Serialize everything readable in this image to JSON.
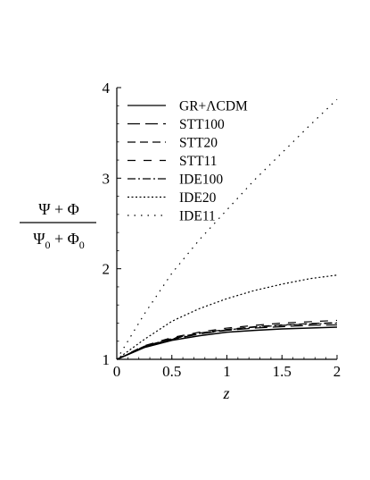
{
  "chart_data": {
    "type": "line",
    "ylabel_numerator": "Ψ + Φ",
    "ylabel_denominator": "Ψ0 + Φ0",
    "xlabel": "z",
    "xlim": [
      0,
      2
    ],
    "ylim": [
      1,
      4
    ],
    "x_ticks": [
      "0",
      "0.5",
      "1",
      "1.5",
      "2"
    ],
    "y_ticks": [
      "1",
      "2",
      "3",
      "4"
    ],
    "grid": false,
    "legend_position": "top-left",
    "series": [
      {
        "name": "GR+ΛCDM",
        "dash": "solid",
        "x": [
          0,
          0.25,
          0.5,
          0.75,
          1,
          1.25,
          1.5,
          1.75,
          2
        ],
        "y": [
          1.0,
          1.13,
          1.21,
          1.26,
          1.3,
          1.32,
          1.335,
          1.345,
          1.355
        ]
      },
      {
        "name": "STT100",
        "dash": "long-dash",
        "x": [
          0,
          0.25,
          0.5,
          0.75,
          1,
          1.25,
          1.5,
          1.75,
          2
        ],
        "y": [
          1.0,
          1.14,
          1.22,
          1.28,
          1.32,
          1.345,
          1.36,
          1.375,
          1.38
        ]
      },
      {
        "name": "STT20",
        "dash": "dash",
        "x": [
          0,
          0.25,
          0.5,
          0.75,
          1,
          1.25,
          1.5,
          1.75,
          2
        ],
        "y": [
          1.0,
          1.145,
          1.23,
          1.29,
          1.33,
          1.36,
          1.38,
          1.395,
          1.405
        ]
      },
      {
        "name": "STT11",
        "dash": "spaced-dash",
        "x": [
          0,
          0.25,
          0.5,
          0.75,
          1,
          1.25,
          1.5,
          1.75,
          2
        ],
        "y": [
          1.0,
          1.15,
          1.24,
          1.3,
          1.345,
          1.375,
          1.4,
          1.415,
          1.43
        ]
      },
      {
        "name": "IDE100",
        "dash": "dash-dot",
        "x": [
          0,
          0.25,
          0.5,
          0.75,
          1,
          1.25,
          1.5,
          1.75,
          2
        ],
        "y": [
          1.0,
          1.14,
          1.225,
          1.285,
          1.325,
          1.355,
          1.375,
          1.39,
          1.4
        ]
      },
      {
        "name": "IDE20",
        "dash": "dot",
        "x": [
          0,
          0.25,
          0.5,
          0.75,
          1,
          1.25,
          1.5,
          1.75,
          2
        ],
        "y": [
          1.0,
          1.22,
          1.42,
          1.56,
          1.67,
          1.76,
          1.83,
          1.89,
          1.93
        ]
      },
      {
        "name": "IDE11",
        "dash": "sparse-dot",
        "x": [
          0,
          0.25,
          0.5,
          0.75,
          1,
          1.25,
          1.5,
          1.75,
          2
        ],
        "y": [
          1.0,
          1.5,
          1.95,
          2.32,
          2.65,
          2.98,
          3.28,
          3.58,
          3.87
        ]
      }
    ]
  }
}
